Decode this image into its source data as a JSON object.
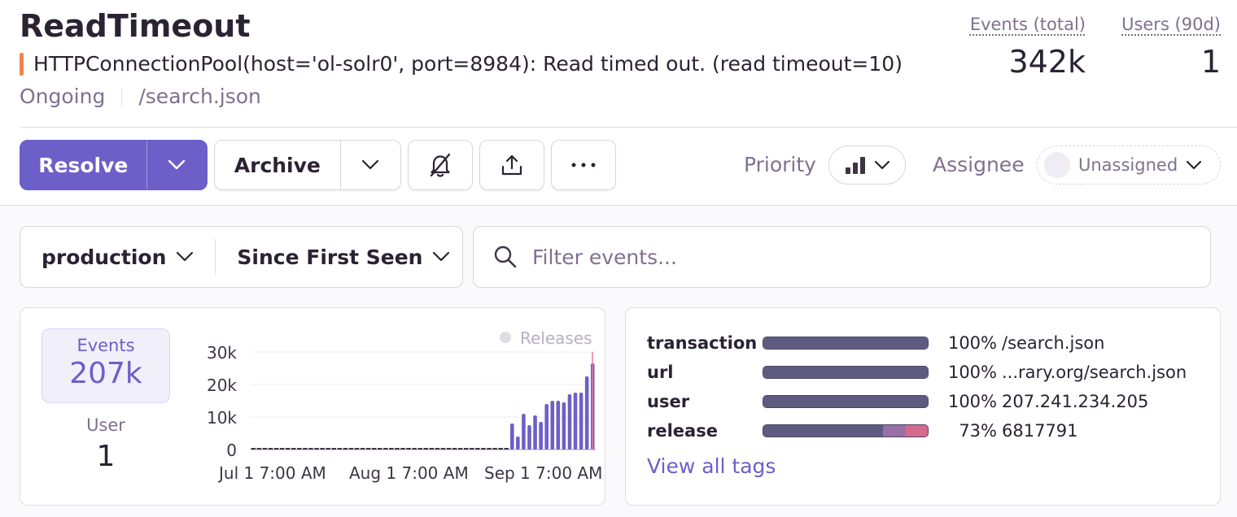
{
  "issue": {
    "title": "ReadTimeout",
    "message": "HTTPConnectionPool(host='ol-solr0', port=8984): Read timed out. (read timeout=10)",
    "status": "Ongoing",
    "culprit": "/search.json",
    "message_color": "#f2844b"
  },
  "stats": {
    "events_label": "Events (total)",
    "events_value": "342k",
    "users_label": "Users (90d)",
    "users_value": "1"
  },
  "actions": {
    "resolve_label": "Resolve",
    "archive_label": "Archive",
    "mute_icon": "bell-slash-icon",
    "share_icon": "upload-icon",
    "more_icon": "ellipsis-icon",
    "priority_label": "Priority",
    "priority_icon": "bar-chart-icon",
    "assignee_label": "Assignee",
    "assignee_value": "Unassigned",
    "accent": "#6c5fc7"
  },
  "filters": {
    "environment": "production",
    "time_range": "Since First Seen",
    "search_placeholder": "Filter events..."
  },
  "summary": {
    "events_label": "Events",
    "events_value": "207k",
    "user_label": "User",
    "user_value": "1",
    "releases_legend": "Releases"
  },
  "chart_data": {
    "type": "bar",
    "y_ticks": [
      "30k",
      "20k",
      "10k",
      "0"
    ],
    "ylim": [
      0,
      30000
    ],
    "x_tick_labels": [
      "Jul 1 7:00 AM",
      "Aug 1 7:00 AM",
      "Sep 1 7:00 AM"
    ],
    "bar_color": "#6c5fc7",
    "baseline_bars": 45,
    "values": [
      8000,
      4000,
      11000,
      7500,
      10500,
      8500,
      14000,
      15000,
      15000,
      14500,
      17000,
      17500,
      17500,
      22500,
      26500
    ]
  },
  "tags": {
    "items": [
      {
        "key": "transaction",
        "pct": "100%",
        "value": "/search.json",
        "fraction": 1.0
      },
      {
        "key": "url",
        "pct": "100%",
        "value": "...rary.org/search.json",
        "fraction": 1.0
      },
      {
        "key": "user",
        "pct": "100%",
        "value": "207.241.234.205",
        "fraction": 1.0
      },
      {
        "key": "release",
        "pct": "73%",
        "value": "6817791",
        "fraction": 0.73
      }
    ],
    "view_all": "View all tags",
    "bar_color": "#5f5a80",
    "secondary_colors": [
      "#9a6fa6",
      "#d46a8c"
    ]
  }
}
